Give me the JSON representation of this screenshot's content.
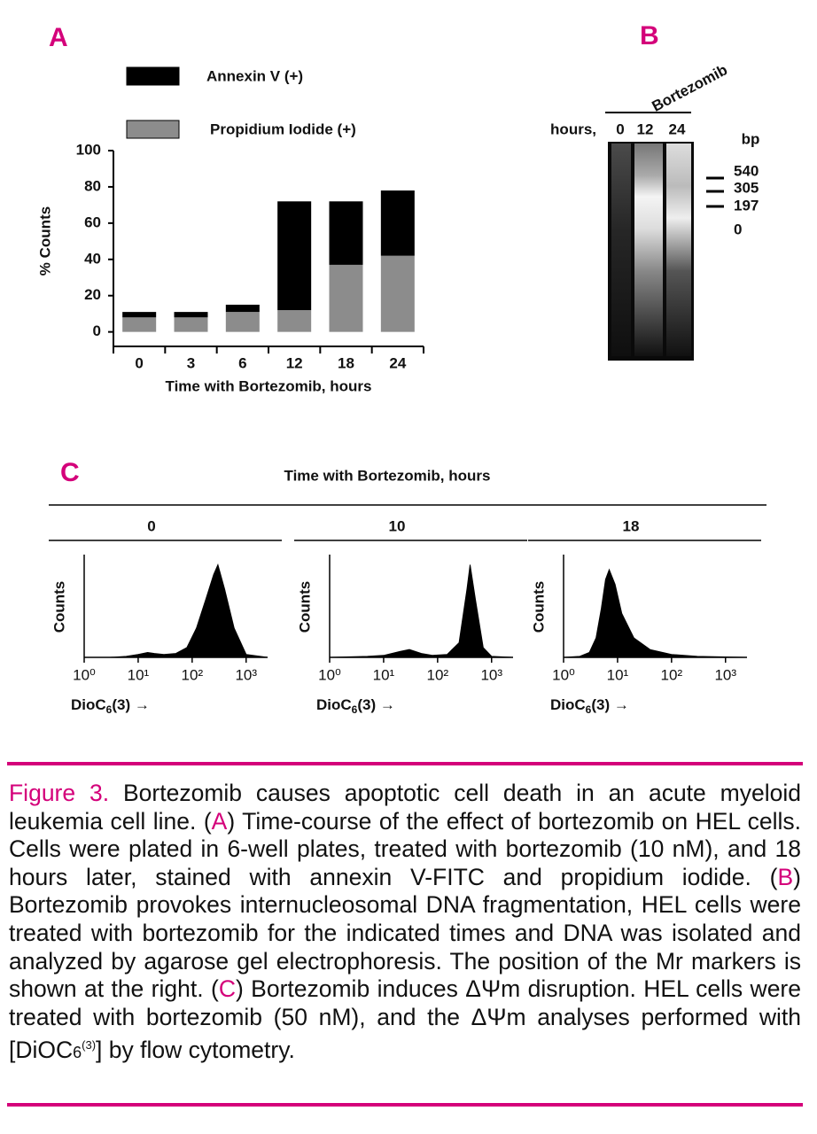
{
  "panel_labels": [
    "A",
    "B",
    "C"
  ],
  "chart_data": [
    {
      "type": "bar",
      "stacked": true,
      "categories": [
        "0",
        "3",
        "6",
        "12",
        "18",
        "24"
      ],
      "series": [
        {
          "name": "Propidium Iodide (+)",
          "color": "#8c8c8c",
          "values": [
            8,
            8,
            11,
            12,
            37,
            42
          ]
        },
        {
          "name": "Annexin V (+)",
          "color": "#000000",
          "values": [
            3,
            3,
            4,
            60,
            35,
            36
          ]
        }
      ],
      "ylabel": "% Counts",
      "xlabel": "Time with Bortezomib, hours",
      "ylim": [
        -8,
        100
      ],
      "yticks": [
        0,
        20,
        40,
        60,
        80,
        100
      ],
      "legend": "top-left"
    },
    {
      "type": "area",
      "title": "0",
      "color": "#000000",
      "xlog": true,
      "x": [
        1,
        3,
        6,
        10,
        15,
        20,
        30,
        50,
        80,
        120,
        180,
        250,
        300,
        400,
        600,
        1000,
        2500
      ],
      "values": [
        0,
        0,
        1,
        3,
        5,
        4,
        3,
        4,
        10,
        30,
        60,
        85,
        95,
        70,
        30,
        3,
        0
      ],
      "xlim": [
        1,
        2500
      ],
      "ylim": [
        0,
        100
      ],
      "xticks": [
        {
          "value": 1,
          "label": "10⁰"
        },
        {
          "value": 10,
          "label": "10¹"
        },
        {
          "value": 100,
          "label": "10²"
        },
        {
          "value": 1000,
          "label": "10³"
        }
      ],
      "ylabel": "Counts",
      "xlabel": {
        "text": "DioC",
        "sub": "6",
        "rest": "(3) →"
      }
    },
    {
      "type": "area",
      "title": "10",
      "color": "#000000",
      "xlog": true,
      "x": [
        1,
        5,
        10,
        20,
        30,
        50,
        80,
        150,
        250,
        350,
        400,
        500,
        700,
        1000,
        2500
      ],
      "values": [
        0,
        1,
        2,
        6,
        8,
        4,
        2,
        3,
        15,
        70,
        95,
        60,
        10,
        1,
        0
      ],
      "xlim": [
        1,
        2500
      ],
      "ylim": [
        0,
        100
      ],
      "xticks": [
        {
          "value": 1,
          "label": "10⁰"
        },
        {
          "value": 10,
          "label": "10¹"
        },
        {
          "value": 100,
          "label": "10²"
        },
        {
          "value": 1000,
          "label": "10³"
        }
      ],
      "ylabel": "Counts",
      "xlabel": {
        "text": "DioC",
        "sub": "6",
        "rest": "(3) →"
      }
    },
    {
      "type": "area",
      "title": "18",
      "color": "#000000",
      "xlog": true,
      "x": [
        1,
        2,
        3,
        4,
        5,
        6,
        7,
        9,
        12,
        20,
        40,
        100,
        300,
        2500
      ],
      "values": [
        0,
        1,
        5,
        20,
        50,
        80,
        90,
        75,
        45,
        20,
        8,
        3,
        1,
        0
      ],
      "xlim": [
        1,
        2500
      ],
      "ylim": [
        0,
        100
      ],
      "xticks": [
        {
          "value": 1,
          "label": "10⁰"
        },
        {
          "value": 10,
          "label": "10¹"
        },
        {
          "value": 100,
          "label": "10²"
        },
        {
          "value": 1000,
          "label": "10³"
        }
      ],
      "ylabel": "Counts",
      "xlabel": {
        "text": "DioC",
        "sub": "6",
        "rest": "(3) →"
      }
    }
  ],
  "gel": {
    "treatment": "Bortezomib",
    "hours_label": "hours,",
    "lanes": [
      "0",
      "12",
      "24"
    ],
    "unit": "bp",
    "markers": [
      "540",
      "305",
      "197",
      "0"
    ]
  },
  "panel_c": {
    "title": "Time with Bortezomib, hours"
  },
  "caption": {
    "segments": [
      "Figure 3.",
      " Bortezomib causes apoptotic cell death in an acute myeloid leukemia cell line. (",
      "A",
      ") Time-course of the effect of bortezomib on HEL cells. Cells were plated in 6-well plates, treated with bortezomib (10 nM), and 18 hours later, stained with annexin V-FITC and propidium iodide. (",
      "B",
      ") Bortezomib provokes internucleosomal DNA fragmentation, HEL cells were treated with bortezomib for the indicated times and DNA was isolated and analyzed by agarose gel electrophoresis. The position of the Mr markers is shown at the right. (",
      "C",
      ") Bortezomib induces ΔΨm disruption. HEL cells were treated with bortezomib (50 nM), and the ΔΨm analyses performed with [DiOC",
      "6",
      "(3)",
      "] by flow cytometry."
    ]
  }
}
